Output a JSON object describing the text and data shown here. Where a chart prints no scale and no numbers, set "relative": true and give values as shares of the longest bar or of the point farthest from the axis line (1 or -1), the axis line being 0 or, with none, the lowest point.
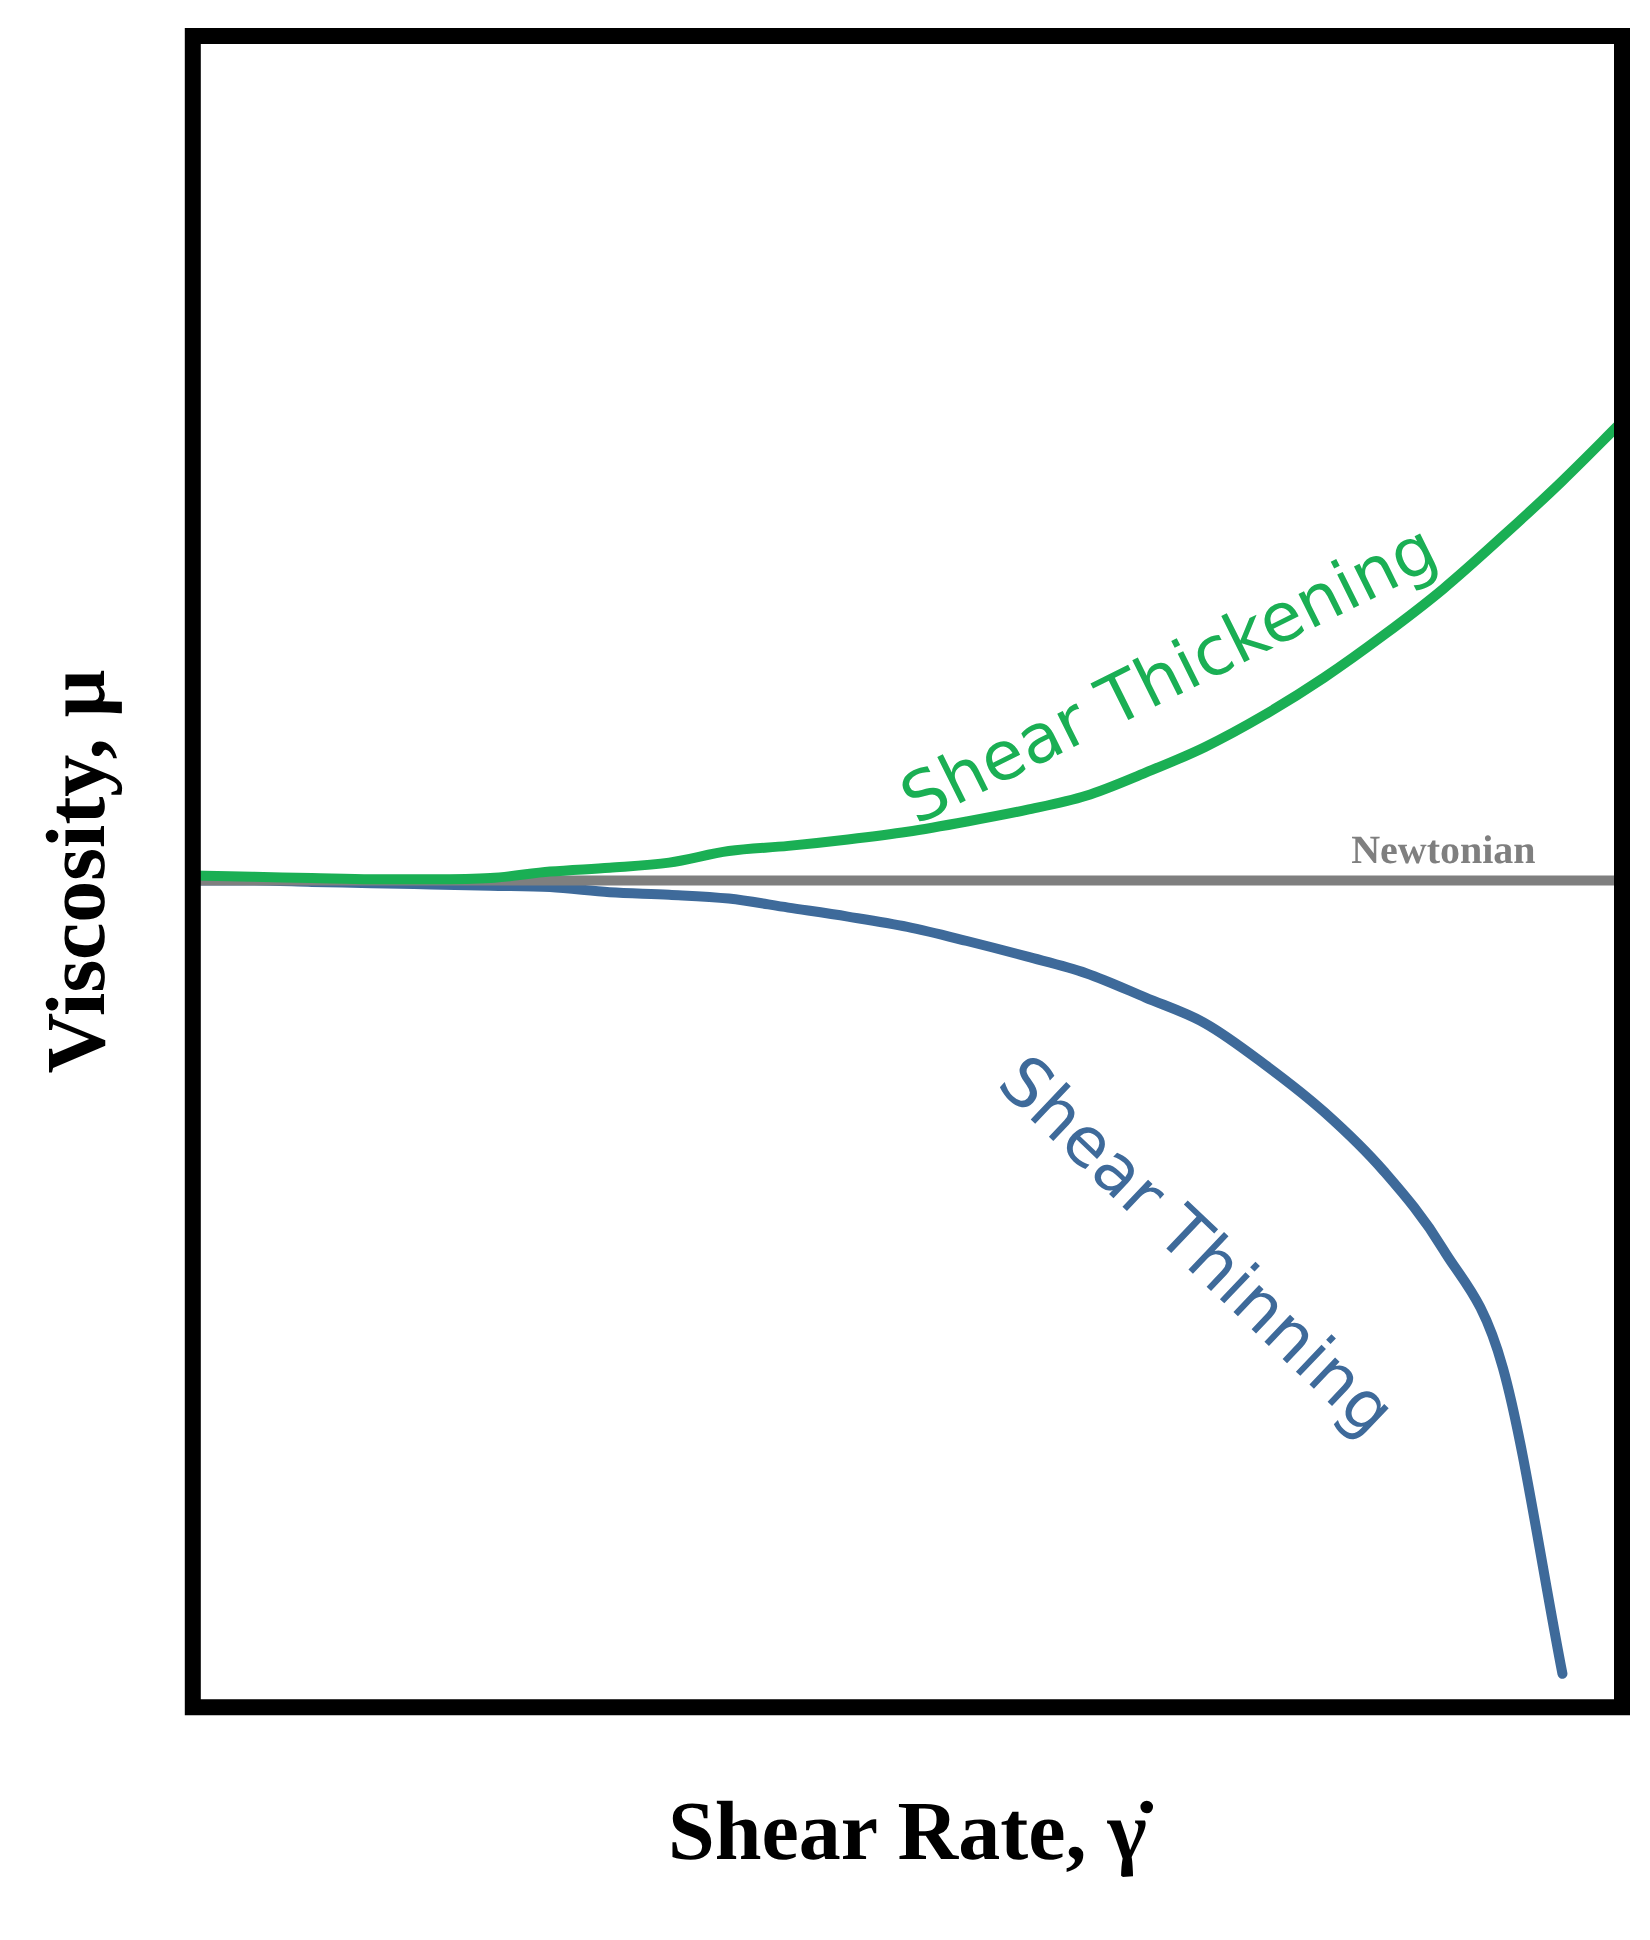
{
  "chart_data": {
    "type": "line",
    "relative": true,
    "xlabel": "Shear Rate, γ̇",
    "ylabel": "Viscosity, μ",
    "tick_labels": false,
    "grid": false,
    "legend": false,
    "marker": "none",
    "line_style": "solid",
    "categories": [
      null,
      null,
      null,
      null,
      null,
      null,
      null,
      null,
      null,
      null,
      null,
      null,
      null,
      null,
      null,
      null,
      null,
      null,
      null,
      null,
      null,
      null,
      null,
      null,
      null
    ],
    "series": [
      {
        "name": "Shear Thickening",
        "color": "#1aaf54",
        "values": [
          0.647,
          0.646,
          0.645,
          0.644,
          0.644,
          0.645,
          0.65,
          0.653,
          0.657,
          0.666,
          0.67,
          0.675,
          0.681,
          0.689,
          0.698,
          0.709,
          0.727,
          0.747,
          0.772,
          0.801,
          0.834,
          0.87,
          0.911,
          0.954,
          1
        ]
      },
      {
        "name": "Newtonian",
        "color": "#7f7f7f",
        "values": [
          0.643,
          0.643,
          0.643,
          0.643,
          0.643,
          0.643,
          0.643,
          0.643,
          0.643,
          0.643,
          0.643,
          0.643,
          0.643,
          0.643,
          0.643,
          0.643,
          0.643,
          0.643,
          0.643,
          0.643,
          0.643,
          0.643,
          0.643,
          0.643,
          0.643
        ]
      },
      {
        "name": "Shear Thinning",
        "color": "#3e6a9a",
        "values": [
          0.643,
          0.643,
          0.642,
          0.641,
          0.64,
          0.639,
          0.638,
          0.634,
          0.632,
          0.629,
          0.622,
          0.615,
          0.607,
          0.596,
          0.584,
          0.571,
          0.552,
          0.532,
          0.5,
          0.463,
          0.417,
          0.356,
          0.264,
          0.026,
          null
        ]
      }
    ]
  }
}
